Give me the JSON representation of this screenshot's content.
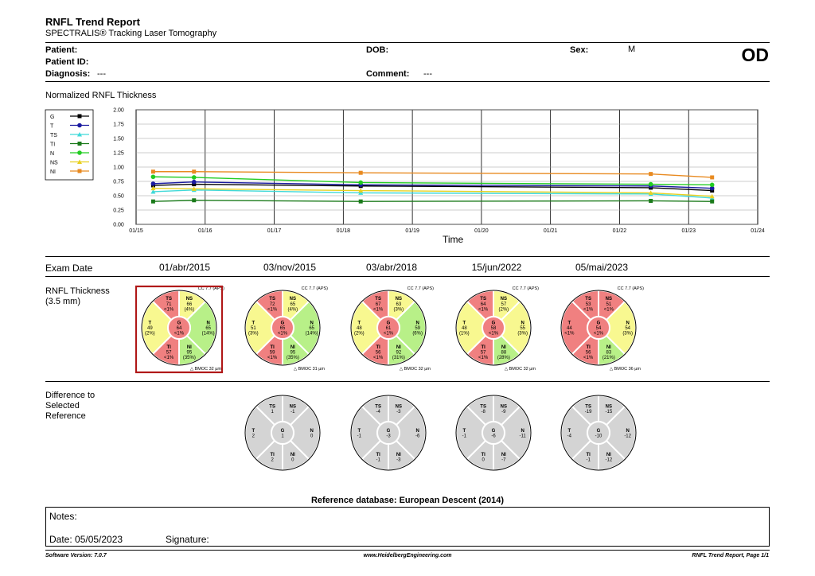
{
  "header": {
    "title": "RNFL Trend Report",
    "subtitle": "SPECTRALIS® Tracking Laser Tomography",
    "eye": "OD"
  },
  "patient": {
    "patient_label": "Patient:",
    "patient_id_label": "Patient ID:",
    "diagnosis_label": "Diagnosis:",
    "diagnosis_value": "---",
    "dob_label": "DOB:",
    "comment_label": "Comment:",
    "comment_value": "---",
    "sex_label": "Sex:",
    "sex_value": "M"
  },
  "trend": {
    "section_title": "Normalized RNFL Thickness",
    "xlabel": "Time"
  },
  "chart_data": {
    "type": "line",
    "x_ticks": [
      "01/15",
      "01/16",
      "01/17",
      "01/18",
      "01/19",
      "01/20",
      "01/21",
      "01/22",
      "01/23",
      "01/24"
    ],
    "y_ticks": [
      "0.00",
      "0.25",
      "0.50",
      "0.75",
      "1.00",
      "1.25",
      "1.50",
      "1.75",
      "2.00"
    ],
    "ylim": [
      0,
      2
    ],
    "xlabel": "Time",
    "grid": true,
    "legend_position": "top-left",
    "x_dates": [
      "2015-04-01",
      "2015-11-03",
      "2018-04-03",
      "2022-06-15",
      "2023-05-05"
    ],
    "series": [
      {
        "name": "G",
        "color": "#000000",
        "marker": "square",
        "values": [
          0.68,
          0.7,
          0.67,
          0.64,
          0.59
        ]
      },
      {
        "name": "T",
        "color": "#1a1aa0",
        "marker": "circle",
        "values": [
          0.71,
          0.74,
          0.69,
          0.67,
          0.63
        ]
      },
      {
        "name": "TS",
        "color": "#3fd9d9",
        "marker": "triangle",
        "values": [
          0.57,
          0.6,
          0.55,
          0.53,
          0.46
        ]
      },
      {
        "name": "TI",
        "color": "#1a7a1a",
        "marker": "square",
        "values": [
          0.4,
          0.42,
          0.4,
          0.41,
          0.4
        ]
      },
      {
        "name": "N",
        "color": "#22cc22",
        "marker": "circle",
        "values": [
          0.83,
          0.82,
          0.73,
          0.7,
          0.69
        ]
      },
      {
        "name": "NS",
        "color": "#e8d020",
        "marker": "triangle",
        "values": [
          0.63,
          0.62,
          0.59,
          0.55,
          0.49
        ]
      },
      {
        "name": "NI",
        "color": "#e88a20",
        "marker": "square",
        "values": [
          0.92,
          0.92,
          0.9,
          0.88,
          0.82
        ]
      }
    ]
  },
  "exams": {
    "header_label": "Exam Date",
    "dates": [
      "01/abr/2015",
      "03/nov/2015",
      "03/abr/2018",
      "15/jun/2022",
      "05/mai/2023"
    ]
  },
  "thickness": {
    "label_line1": "RNFL Thickness",
    "label_line2": "(3.5 mm)",
    "cc_text": "CC 7.7 (APS)",
    "selected_index": 0,
    "colors": {
      "red": "#f08080",
      "yellow": "#f8f890",
      "green": "#b8f088",
      "gray": "#d4d4d4"
    },
    "circles": [
      {
        "bmo": "BMOC 32 µm",
        "TS": {
          "v": "71",
          "p": "<1%",
          "c": "red"
        },
        "NS": {
          "v": "66",
          "p": "(4%)",
          "c": "yellow"
        },
        "T": {
          "v": "49",
          "p": "(2%)",
          "c": "yellow"
        },
        "G": {
          "v": "64",
          "p": "<1%",
          "c": "red"
        },
        "N": {
          "v": "65",
          "p": "(14%)",
          "c": "green"
        },
        "TI": {
          "v": "57",
          "p": "<1%",
          "c": "red"
        },
        "NI": {
          "v": "95",
          "p": "(35%)",
          "c": "green"
        }
      },
      {
        "bmo": "BMOC 31 µm",
        "TS": {
          "v": "72",
          "p": "<1%",
          "c": "red"
        },
        "NS": {
          "v": "65",
          "p": "(4%)",
          "c": "yellow"
        },
        "T": {
          "v": "51",
          "p": "(3%)",
          "c": "yellow"
        },
        "G": {
          "v": "65",
          "p": "<1%",
          "c": "red"
        },
        "N": {
          "v": "65",
          "p": "(14%)",
          "c": "green"
        },
        "TI": {
          "v": "59",
          "p": "<1%",
          "c": "red"
        },
        "NI": {
          "v": "95",
          "p": "(35%)",
          "c": "green"
        }
      },
      {
        "bmo": "BMOC 32 µm",
        "TS": {
          "v": "67",
          "p": "<1%",
          "c": "red"
        },
        "NS": {
          "v": "63",
          "p": "(3%)",
          "c": "yellow"
        },
        "T": {
          "v": "48",
          "p": "(2%)",
          "c": "yellow"
        },
        "G": {
          "v": "61",
          "p": "<1%",
          "c": "red"
        },
        "N": {
          "v": "59",
          "p": "(6%)",
          "c": "green"
        },
        "TI": {
          "v": "56",
          "p": "<1%",
          "c": "red"
        },
        "NI": {
          "v": "92",
          "p": "(31%)",
          "c": "green"
        }
      },
      {
        "bmo": "BMOC 32 µm",
        "TS": {
          "v": "64",
          "p": "<1%",
          "c": "red"
        },
        "NS": {
          "v": "57",
          "p": "(2%)",
          "c": "yellow"
        },
        "T": {
          "v": "48",
          "p": "(1%)",
          "c": "yellow"
        },
        "G": {
          "v": "58",
          "p": "<1%",
          "c": "red"
        },
        "N": {
          "v": "55",
          "p": "(3%)",
          "c": "yellow"
        },
        "TI": {
          "v": "57",
          "p": "<1%",
          "c": "red"
        },
        "NI": {
          "v": "88",
          "p": "(28%)",
          "c": "green"
        }
      },
      {
        "bmo": "BMOC 36 µm",
        "TS": {
          "v": "53",
          "p": "<1%",
          "c": "red"
        },
        "NS": {
          "v": "51",
          "p": "<1%",
          "c": "red"
        },
        "T": {
          "v": "44",
          "p": "<1%",
          "c": "red"
        },
        "G": {
          "v": "54",
          "p": "<1%",
          "c": "red"
        },
        "N": {
          "v": "54",
          "p": "(3%)",
          "c": "yellow"
        },
        "TI": {
          "v": "56",
          "p": "<1%",
          "c": "red"
        },
        "NI": {
          "v": "83",
          "p": "(21%)",
          "c": "green"
        }
      }
    ]
  },
  "difference": {
    "label_line1": "Difference to",
    "label_line2": "Selected",
    "label_line3": "Reference",
    "circles": [
      {
        "TS": "1",
        "NS": "-1",
        "T": "2",
        "G": "1",
        "N": "0",
        "TI": "2",
        "NI": "0"
      },
      {
        "TS": "-4",
        "NS": "-3",
        "T": "-1",
        "G": "-3",
        "N": "-6",
        "TI": "-1",
        "NI": "-3"
      },
      {
        "TS": "-8",
        "NS": "-9",
        "T": "-1",
        "G": "-6",
        "N": "-11",
        "TI": "0",
        "NI": "-7"
      },
      {
        "TS": "-19",
        "NS": "-15",
        "T": "-4",
        "G": "-10",
        "N": "-12",
        "TI": "-1",
        "NI": "-12"
      }
    ]
  },
  "reference_db": "Reference database: European Descent (2014)",
  "notes": {
    "notes_label": "Notes:",
    "date_label": "Date: 05/05/2023",
    "signature_label": "Signature:"
  },
  "footer": {
    "software": "Software Version: 7.0.7",
    "website": "www.HeidelbergEngineering.com",
    "page": "RNFL Trend Report, Page 1/1"
  }
}
